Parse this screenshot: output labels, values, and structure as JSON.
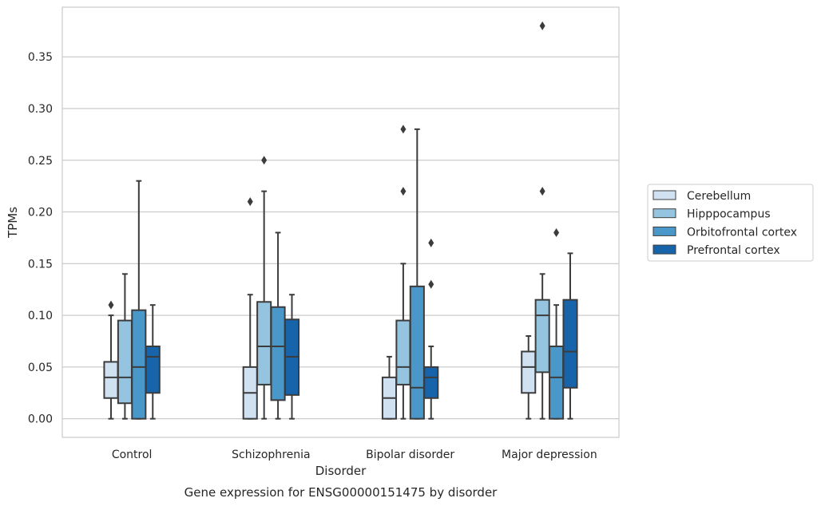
{
  "chart_data": {
    "type": "box",
    "title": "",
    "caption": "Gene expression for ENSG00000151475 by disorder",
    "xlabel": "Disorder",
    "ylabel": "TPMs",
    "ylim": [
      -0.018,
      0.398
    ],
    "yticks": [
      0.0,
      0.05,
      0.1,
      0.15,
      0.2,
      0.25,
      0.3,
      0.35
    ],
    "ytick_labels": [
      "0.00",
      "0.05",
      "0.10",
      "0.15",
      "0.20",
      "0.25",
      "0.30",
      "0.35"
    ],
    "grid": "horizontal",
    "legend_position": "right",
    "categories": [
      "Control",
      "Schizophrenia",
      "Bipolar disorder",
      "Major depression"
    ],
    "series": [
      {
        "name": "Cerebellum",
        "color": "#d0e1f2",
        "boxes": [
          {
            "whislo": 0.0,
            "q1": 0.02,
            "med": 0.04,
            "q3": 0.055,
            "whishi": 0.1,
            "fliers": [
              0.11
            ]
          },
          {
            "whislo": 0.0,
            "q1": 0.0,
            "med": 0.025,
            "q3": 0.05,
            "whishi": 0.12,
            "fliers": [
              0.21
            ]
          },
          {
            "whislo": 0.0,
            "q1": 0.0,
            "med": 0.02,
            "q3": 0.04,
            "whishi": 0.06,
            "fliers": []
          },
          {
            "whislo": 0.0,
            "q1": 0.025,
            "med": 0.05,
            "q3": 0.065,
            "whishi": 0.08,
            "fliers": []
          }
        ]
      },
      {
        "name": "Hipppocampus",
        "color": "#94c4df",
        "boxes": [
          {
            "whislo": 0.0,
            "q1": 0.015,
            "med": 0.04,
            "q3": 0.095,
            "whishi": 0.14,
            "fliers": []
          },
          {
            "whislo": 0.0,
            "q1": 0.033,
            "med": 0.07,
            "q3": 0.113,
            "whishi": 0.22,
            "fliers": [
              0.25
            ]
          },
          {
            "whislo": 0.0,
            "q1": 0.033,
            "med": 0.05,
            "q3": 0.095,
            "whishi": 0.15,
            "fliers": [
              0.22,
              0.28
            ]
          },
          {
            "whislo": 0.0,
            "q1": 0.045,
            "med": 0.1,
            "q3": 0.115,
            "whishi": 0.14,
            "fliers": [
              0.22,
              0.38
            ]
          }
        ]
      },
      {
        "name": "Orbitofrontal cortex",
        "color": "#4a98c9",
        "boxes": [
          {
            "whislo": 0.0,
            "q1": 0.0,
            "med": 0.05,
            "q3": 0.105,
            "whishi": 0.23,
            "fliers": []
          },
          {
            "whislo": 0.0,
            "q1": 0.018,
            "med": 0.07,
            "q3": 0.108,
            "whishi": 0.18,
            "fliers": []
          },
          {
            "whislo": 0.0,
            "q1": 0.0,
            "med": 0.03,
            "q3": 0.128,
            "whishi": 0.28,
            "fliers": []
          },
          {
            "whislo": 0.0,
            "q1": 0.0,
            "med": 0.04,
            "q3": 0.07,
            "whishi": 0.11,
            "fliers": [
              0.18
            ]
          }
        ]
      },
      {
        "name": "Prefrontal cortex",
        "color": "#1764ab",
        "boxes": [
          {
            "whislo": 0.0,
            "q1": 0.025,
            "med": 0.06,
            "q3": 0.07,
            "whishi": 0.11,
            "fliers": []
          },
          {
            "whislo": 0.0,
            "q1": 0.023,
            "med": 0.06,
            "q3": 0.096,
            "whishi": 0.12,
            "fliers": []
          },
          {
            "whislo": 0.0,
            "q1": 0.02,
            "med": 0.04,
            "q3": 0.05,
            "whishi": 0.07,
            "fliers": [
              0.13,
              0.17
            ]
          },
          {
            "whislo": 0.0,
            "q1": 0.03,
            "med": 0.065,
            "q3": 0.115,
            "whishi": 0.16,
            "fliers": []
          }
        ]
      }
    ]
  }
}
